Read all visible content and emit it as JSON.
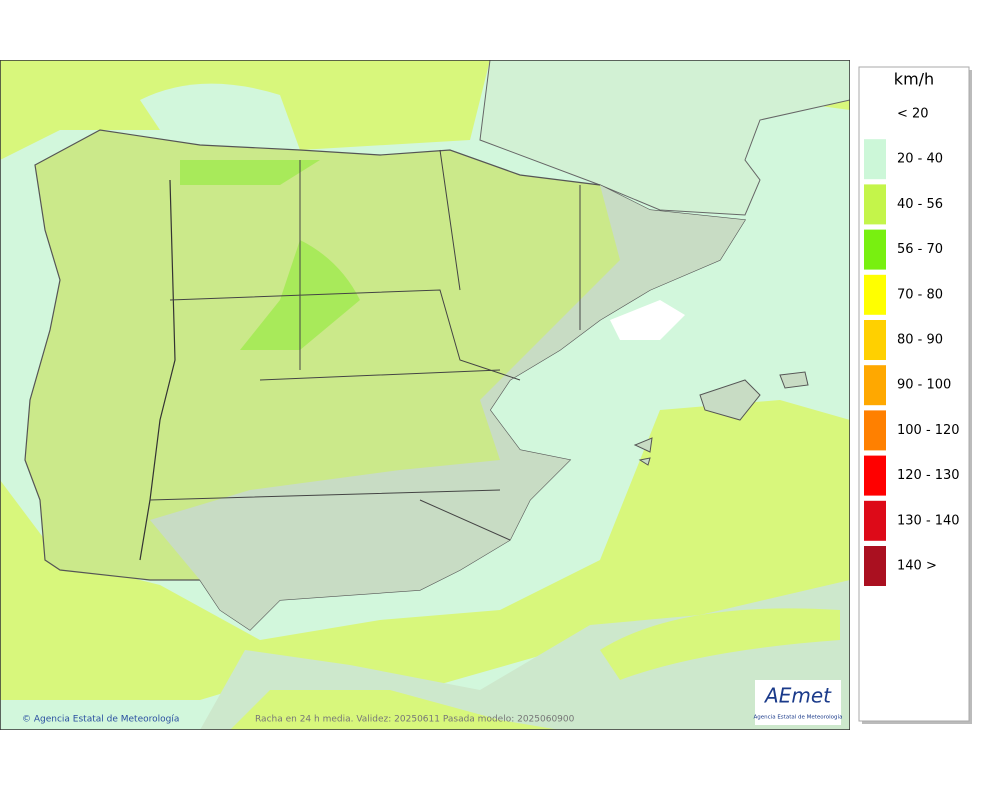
{
  "map": {
    "footer": "Racha en 24 h media. Validez: 20250611 Pasada modelo: 2025060900",
    "copyright": "© Agencia Estatal de Meteorología"
  },
  "logo": {
    "name": "AEmet",
    "subtitle": "Agencia Estatal de Meteorología"
  },
  "legend": {
    "title": "km/h",
    "items": [
      {
        "label": "< 20",
        "color": "#ffffff"
      },
      {
        "label": "20 - 40",
        "color": "#ccf7d8"
      },
      {
        "label": "40 - 56",
        "color": "#c4f54a"
      },
      {
        "label": "56 - 70",
        "color": "#78f010"
      },
      {
        "label": "70 - 80",
        "color": "#ffff00"
      },
      {
        "label": "80 - 90",
        "color": "#ffd000"
      },
      {
        "label": "90 - 100",
        "color": "#ffa800"
      },
      {
        "label": "100 - 120",
        "color": "#ff8000"
      },
      {
        "label": "120 - 130",
        "color": "#ff0000"
      },
      {
        "label": "130 - 140",
        "color": "#dd0a18"
      },
      {
        "label": "140 >",
        "color": "#aa1020"
      }
    ]
  }
}
